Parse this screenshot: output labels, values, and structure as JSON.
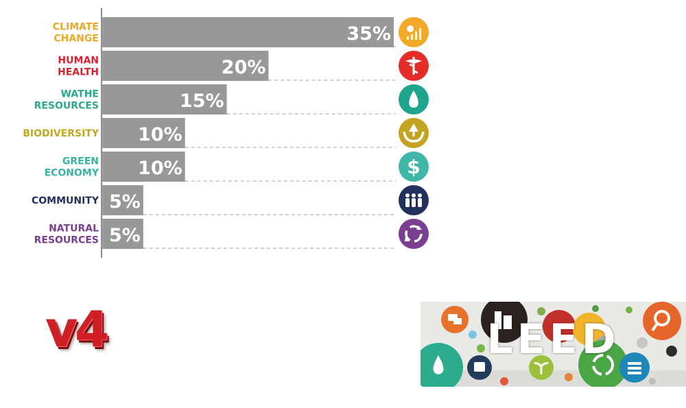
{
  "chart_data": {
    "type": "bar",
    "orientation": "horizontal",
    "categories": [
      [
        "CLIMATE",
        "CHANGE"
      ],
      [
        "HUMAN",
        "HEALTH"
      ],
      [
        "WATHE",
        "RESOURCES"
      ],
      [
        "BIODIVERSITY"
      ],
      [
        "GREEN",
        "ECONOMY"
      ],
      [
        "COMMUNITY"
      ],
      [
        "NATURAL",
        "RESOURCES"
      ]
    ],
    "values": [
      35,
      20,
      15,
      10,
      10,
      5,
      5
    ],
    "value_labels": [
      "35%",
      "20%",
      "15%",
      "10%",
      "10%",
      "5%",
      "5%"
    ],
    "label_colors": [
      "#e9a827",
      "#e0202d",
      "#2aa98c",
      "#c4a71f",
      "#3ab3a3",
      "#22305e",
      "#7b3c93"
    ],
    "icons": [
      "sun-chart-icon",
      "caduceus-icon",
      "water-drop-icon",
      "hands-tree-icon",
      "dollar-icon",
      "people-icon",
      "recycle-icon"
    ],
    "icon_colors": [
      "#f2a92a",
      "#e42d28",
      "#1fa58b",
      "#c3a320",
      "#3fb7a8",
      "#22305e",
      "#7a3f91"
    ],
    "bar_color": "#999897",
    "xlim": [
      0,
      35
    ]
  },
  "logos": {
    "v4": "v4",
    "leed": "LEED"
  }
}
